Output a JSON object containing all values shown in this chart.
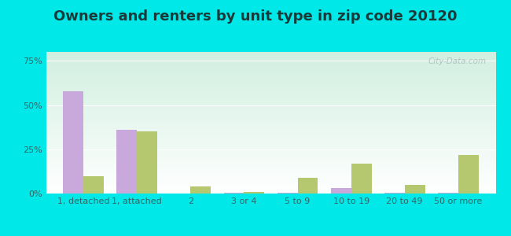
{
  "title": "Owners and renters by unit type in zip code 20120",
  "categories": [
    "1, detached",
    "1, attached",
    "2",
    "3 or 4",
    "5 to 9",
    "10 to 19",
    "20 to 49",
    "50 or more"
  ],
  "owner_values": [
    58,
    36,
    0,
    0.5,
    0.5,
    3,
    0.5,
    0.5
  ],
  "renter_values": [
    10,
    35,
    4,
    1,
    9,
    17,
    5,
    22
  ],
  "owner_color": "#c9a8dc",
  "renter_color": "#b5c870",
  "background_outer": "#00e8e8",
  "yticks": [
    0,
    25,
    50,
    75
  ],
  "ylim": [
    0,
    80
  ],
  "bar_width": 0.38,
  "watermark": "City-Data.com",
  "title_fontsize": 13,
  "tick_fontsize": 8,
  "legend_fontsize": 9,
  "title_color": "#1a3a3a",
  "tick_color": "#336666"
}
